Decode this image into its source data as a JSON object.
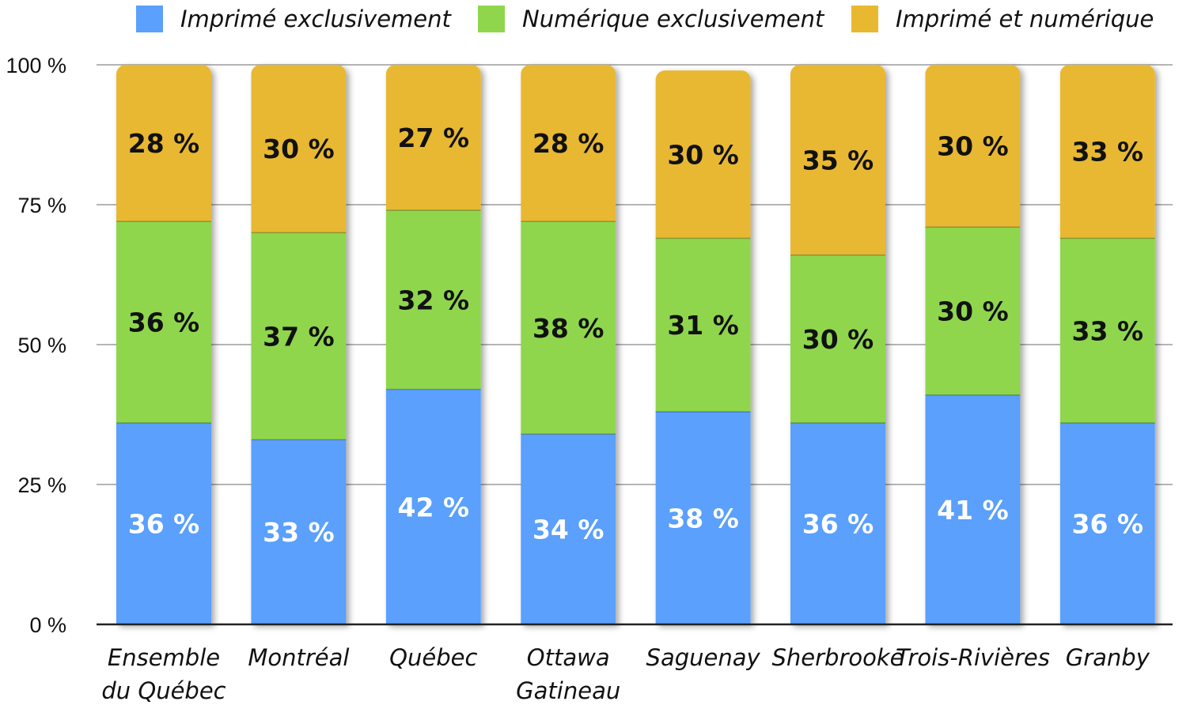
{
  "chart_data": {
    "type": "bar",
    "stacked": true,
    "categories": [
      "Ensemble du Québec",
      "Montréal",
      "Québec",
      "Ottawa Gatineau",
      "Saguenay",
      "Sherbrooke",
      "Trois-Rivières",
      "Granby"
    ],
    "category_lines": [
      [
        "Ensemble",
        "du Québec"
      ],
      [
        "Montréal"
      ],
      [
        "Québec"
      ],
      [
        "Ottawa",
        "Gatineau"
      ],
      [
        "Saguenay"
      ],
      [
        "Sherbrooke"
      ],
      [
        "Trois-Rivières"
      ],
      [
        "Granby"
      ]
    ],
    "series": [
      {
        "name": "Imprimé exclusivement",
        "color": "#5aa0fc",
        "label_color": "#ffffff",
        "values": [
          36,
          33,
          42,
          34,
          38,
          36,
          41,
          36
        ]
      },
      {
        "name": "Numérique exclusivement",
        "color": "#8fd64d",
        "label_color": "#111111",
        "values": [
          36,
          37,
          32,
          38,
          31,
          30,
          30,
          33
        ]
      },
      {
        "name": "Imprimé et numérique",
        "color": "#e8b830",
        "label_color": "#111111",
        "values": [
          28,
          30,
          27,
          28,
          30,
          35,
          30,
          33
        ]
      }
    ],
    "value_suffix": " %",
    "y_ticks": [
      "0 %",
      "25 %",
      "50 %",
      "75 %",
      "100 %"
    ],
    "y_tick_values": [
      0,
      25,
      50,
      75,
      100
    ],
    "ylim": [
      0,
      100
    ],
    "grid": true,
    "legend_position": "top"
  }
}
